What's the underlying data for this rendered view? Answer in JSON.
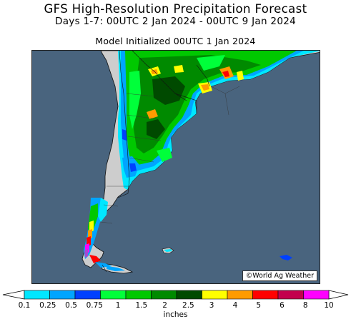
{
  "title": {
    "line1": "GFS High-Resolution Precipitation Forecast",
    "line2": "Days 1-7: 00UTC 2 Jan 2024 - 00UTC 9 Jan 2024",
    "line3": "Model Initialized 00UTC 1 Jan 2024"
  },
  "map": {
    "ocean_color": "#49647e",
    "land_color": "#cdcdcd",
    "credit": "©World Ag Weather"
  },
  "legend": {
    "units": "inches",
    "ticks": [
      "0.1",
      "0.25",
      "0.5",
      "0.75",
      "1",
      "1.5",
      "2",
      "2.5",
      "3",
      "4",
      "5",
      "6",
      "8",
      "10"
    ],
    "colors": [
      "#00e7ff",
      "#00a5ff",
      "#0040ff",
      "#00ff3a",
      "#00c800",
      "#008a00",
      "#004a00",
      "#ffff00",
      "#ff9b00",
      "#ff0000",
      "#c3004d",
      "#ff00ff",
      "#a44cd0"
    ]
  }
}
